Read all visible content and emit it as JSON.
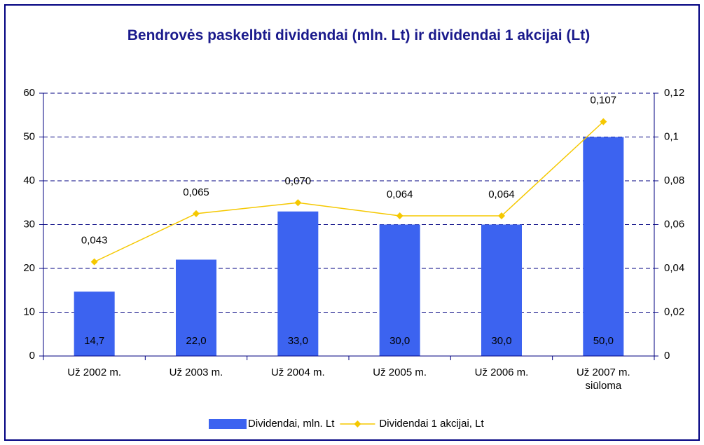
{
  "chart_data": {
    "type": "bar",
    "title": "Bendrovės paskelbti dividendai (mln. Lt) ir dividendai 1 akcijai (Lt)",
    "categories": [
      "Už 2002 m.",
      "Už 2003 m.",
      "Už 2004 m.",
      "Už 2005 m.",
      "Už 2006 m.",
      "Už 2007 m. siūloma"
    ],
    "series": [
      {
        "name": "Dividendai, mln. Lt",
        "type": "bar",
        "color": "#3c63f0",
        "values": [
          14.7,
          22.0,
          33.0,
          30.0,
          30.0,
          50.0
        ],
        "value_labels": [
          "14,7",
          "22,0",
          "33,0",
          "30,0",
          "30,0",
          "50,0"
        ]
      },
      {
        "name": "Dividendai 1 akcijai, Lt",
        "type": "line",
        "color": "#f5c800",
        "axis": "y2",
        "values": [
          0.043,
          0.065,
          0.07,
          0.064,
          0.064,
          0.107
        ],
        "value_labels": [
          "0,043",
          "0,065",
          "0,070",
          "0,064",
          "0,064",
          "0,107"
        ]
      }
    ],
    "ylim": [
      0,
      60
    ],
    "yticks": [
      0,
      10,
      20,
      30,
      40,
      50,
      60
    ],
    "y2lim": [
      0,
      0.12
    ],
    "y2ticks": [
      0,
      {
        "value": 0.02,
        "label": "0,02"
      },
      {
        "value": 0.04,
        "label": "0,04"
      },
      {
        "value": 0.06,
        "label": "0,06"
      },
      {
        "value": 0.08,
        "label": "0,08"
      },
      {
        "value": 0.1,
        "label": "0,1"
      },
      {
        "value": 0.12,
        "label": "0,12"
      }
    ],
    "grid": true,
    "legend": "bottom"
  }
}
